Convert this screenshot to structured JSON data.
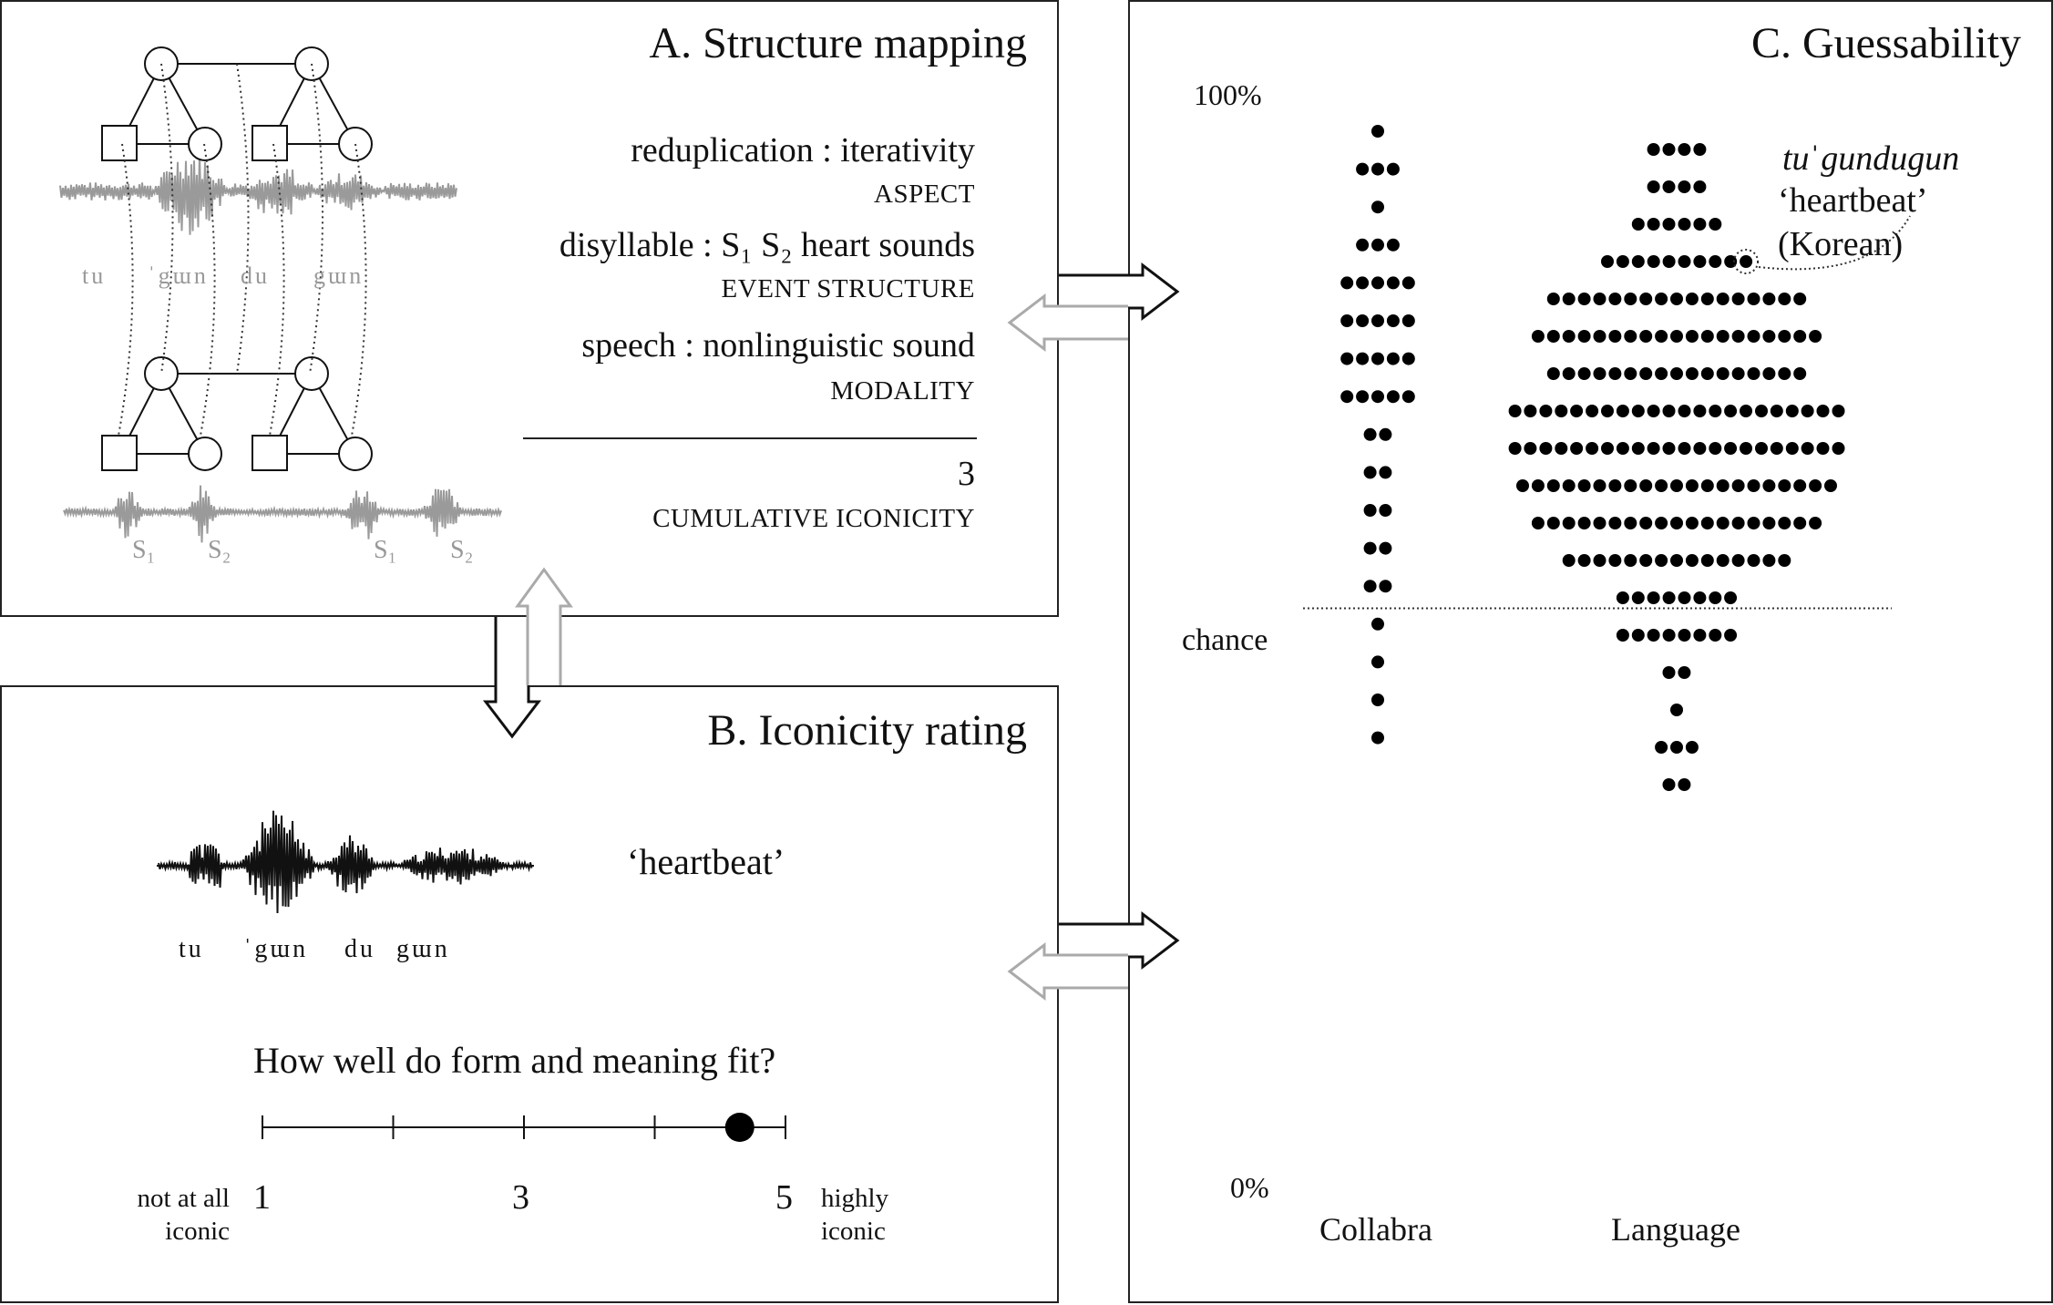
{
  "panelA": {
    "title": "A. Structure mapping",
    "wave_syllables": [
      "tu",
      "ˈgɯn",
      "du",
      "gɯn"
    ],
    "wave2_labels": [
      "S₁",
      "S₂",
      "S₁",
      "S₂"
    ],
    "mappings": [
      {
        "pair": "reduplication : iterativity",
        "category": "ASPECT"
      },
      {
        "pair": "disyllable : S₁ S₂ heart sounds",
        "category": "EVENT STRUCTURE"
      },
      {
        "pair": "speech : nonlinguistic sound",
        "category": "MODALITY"
      }
    ],
    "total_value": "3",
    "total_label": "CUMULATIVE ICONICITY"
  },
  "panelB": {
    "title": "B. Iconicity rating",
    "syllables": [
      "tu",
      "ˈgɯn",
      "du",
      "gɯn"
    ],
    "gloss": "‘heartbeat’",
    "question": "How well do form and meaning fit?",
    "scale_left_label": "not at all iconic",
    "scale_right_label": "highly iconic",
    "scale_ticks": [
      "1",
      "3",
      "5"
    ],
    "scale_min": 1,
    "scale_max": 5,
    "selected_value": 4.65
  },
  "panelC": {
    "title": "C. Guessability",
    "y_top_label": "100%",
    "y_bottom_label": "0%",
    "chance_label": "chance",
    "chance_value": 0.5,
    "callout_word": "tuˈgundugun",
    "callout_gloss": "‘heartbeat’",
    "callout_language": "(Korean)",
    "columns": [
      {
        "name": "Collabra",
        "dot_rows": [
          1,
          3,
          1,
          3,
          5,
          5,
          5,
          5,
          2,
          2,
          2,
          2,
          2,
          1,
          1,
          1,
          1
        ]
      },
      {
        "name": "Language",
        "dot_rows": [
          4,
          4,
          6,
          10,
          17,
          19,
          17,
          22,
          22,
          21,
          19,
          15,
          8,
          8,
          2,
          1,
          3,
          2
        ]
      }
    ]
  },
  "chart_data": {
    "type": "scatter",
    "title": "C. Guessability",
    "xlabel": "",
    "ylabel": "",
    "ylim": [
      "0%",
      "100%"
    ],
    "categories": [
      "Collabra",
      "Language"
    ],
    "reference_line": {
      "label": "chance",
      "value": 0.5
    },
    "highlighted_point": {
      "column": "Language",
      "word": "tuˈgundugun",
      "gloss": "‘heartbeat’",
      "language": "(Korean)"
    }
  }
}
